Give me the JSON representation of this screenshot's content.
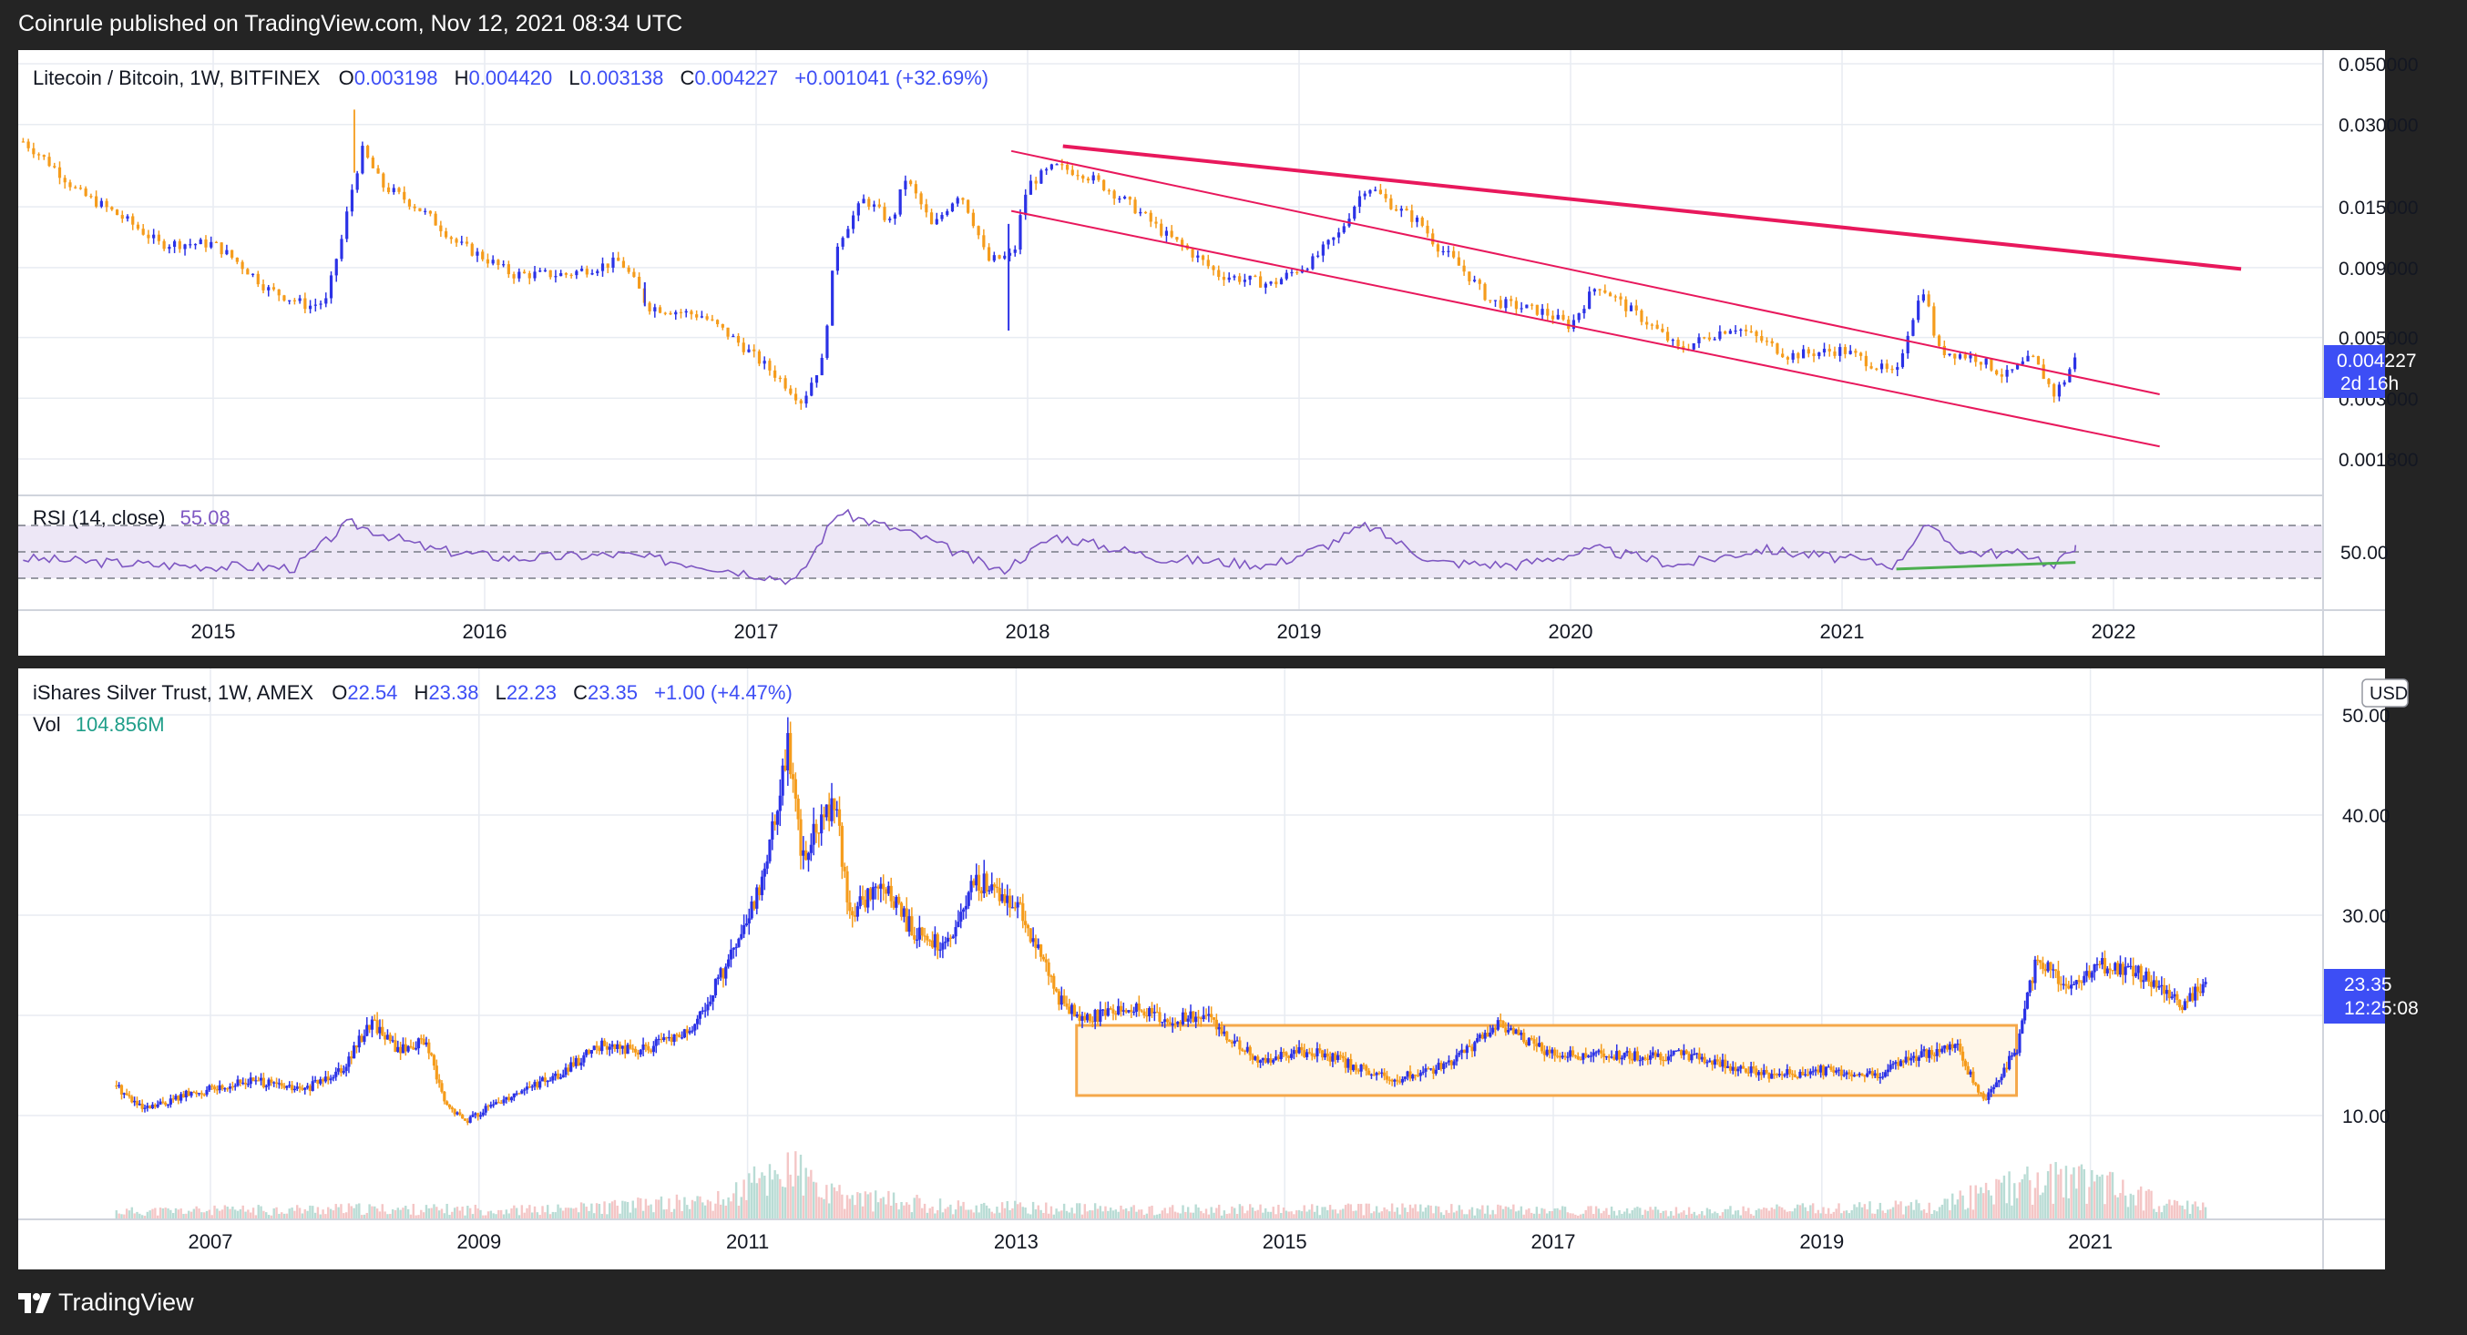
{
  "header": {
    "published_by": "Coinrule published on TradingView.com, Nov 12, 2021 08:34 UTC"
  },
  "footer": {
    "brand": "TradingView",
    "logo_icon": "tradingview-logo-icon"
  },
  "colors": {
    "up": "#2b32e6",
    "down": "#f59c1c",
    "trendline": "#e8185c",
    "channel": "#e8185c",
    "rsi": "#7e57c2",
    "rsi_band": "#ede7f6",
    "box": "#f5a84a",
    "box_fill": "#fff6e8",
    "support": "#4caf50",
    "grid": "#e8ecf2",
    "price_label": "#3d4ef5",
    "rsi_value": "#7e57c2",
    "vol_value": "#1f9e89"
  },
  "top_chart": {
    "legend": {
      "symbol": "Litecoin / Bitcoin, 1W, BITFINEX",
      "o_label": "O",
      "o": "0.003198",
      "h_label": "H",
      "h": "0.004420",
      "l_label": "L",
      "l": "0.003138",
      "c_label": "C",
      "c": "0.004227",
      "change": "+0.001041 (+32.69%)"
    },
    "rsi_legend": {
      "name": "RSI (14, close)",
      "value": "55.08"
    },
    "price_label": {
      "value": "0.004227",
      "countdown": "2d 16h"
    }
  },
  "bottom_chart": {
    "legend": {
      "symbol": "iShares Silver Trust, 1W, AMEX",
      "o_label": "O",
      "o": "22.54",
      "h_label": "H",
      "h": "23.38",
      "l_label": "L",
      "l": "22.23",
      "c_label": "C",
      "c": "23.35",
      "change": "+1.00 (+4.47%)"
    },
    "vol_legend": {
      "name": "Vol",
      "value": "104.856M"
    },
    "currency": "USD",
    "price_label": {
      "value": "23.35",
      "countdown": "12:25:08"
    }
  },
  "chart_data": [
    {
      "type": "candlestick",
      "title": "Litecoin / Bitcoin, 1W, BITFINEX",
      "y_scale": "log",
      "y_ticks": [
        "0.050000",
        "0.030000",
        "0.015000",
        "0.009000",
        "0.005000",
        "0.003000",
        "0.001800"
      ],
      "x_ticks": [
        "2015",
        "2016",
        "2017",
        "2018",
        "2019",
        "2020",
        "2021",
        "2022"
      ],
      "grid": true,
      "price_path": [
        {
          "x": 2014.3,
          "y": 0.026
        },
        {
          "x": 2014.5,
          "y": 0.017
        },
        {
          "x": 2014.8,
          "y": 0.011
        },
        {
          "x": 2015.0,
          "y": 0.011
        },
        {
          "x": 2015.2,
          "y": 0.0075
        },
        {
          "x": 2015.35,
          "y": 0.0065
        },
        {
          "x": 2015.42,
          "y": 0.0068
        },
        {
          "x": 2015.48,
          "y": 0.012
        },
        {
          "x": 2015.55,
          "y": 0.024
        },
        {
          "x": 2015.62,
          "y": 0.018
        },
        {
          "x": 2015.75,
          "y": 0.015
        },
        {
          "x": 2015.9,
          "y": 0.011
        },
        {
          "x": 2016.1,
          "y": 0.0085
        },
        {
          "x": 2016.3,
          "y": 0.0085
        },
        {
          "x": 2016.5,
          "y": 0.0095
        },
        {
          "x": 2016.6,
          "y": 0.0065
        },
        {
          "x": 2016.8,
          "y": 0.006
        },
        {
          "x": 2017.0,
          "y": 0.0042
        },
        {
          "x": 2017.17,
          "y": 0.0029
        },
        {
          "x": 2017.25,
          "y": 0.0042
        },
        {
          "x": 2017.3,
          "y": 0.011
        },
        {
          "x": 2017.4,
          "y": 0.016
        },
        {
          "x": 2017.5,
          "y": 0.013
        },
        {
          "x": 2017.55,
          "y": 0.019
        },
        {
          "x": 2017.65,
          "y": 0.0125
        },
        {
          "x": 2017.75,
          "y": 0.017
        },
        {
          "x": 2017.85,
          "y": 0.0095
        },
        {
          "x": 2017.95,
          "y": 0.01
        },
        {
          "x": 2018.0,
          "y": 0.018
        },
        {
          "x": 2018.1,
          "y": 0.021
        },
        {
          "x": 2018.2,
          "y": 0.02
        },
        {
          "x": 2018.35,
          "y": 0.016
        },
        {
          "x": 2018.5,
          "y": 0.012
        },
        {
          "x": 2018.7,
          "y": 0.0085
        },
        {
          "x": 2018.9,
          "y": 0.0078
        },
        {
          "x": 2019.05,
          "y": 0.0095
        },
        {
          "x": 2019.15,
          "y": 0.012
        },
        {
          "x": 2019.25,
          "y": 0.018
        },
        {
          "x": 2019.35,
          "y": 0.015
        },
        {
          "x": 2019.45,
          "y": 0.013
        },
        {
          "x": 2019.5,
          "y": 0.011
        },
        {
          "x": 2019.7,
          "y": 0.0068
        },
        {
          "x": 2019.9,
          "y": 0.0062
        },
        {
          "x": 2020.0,
          "y": 0.0055
        },
        {
          "x": 2020.1,
          "y": 0.0078
        },
        {
          "x": 2020.2,
          "y": 0.0065
        },
        {
          "x": 2020.4,
          "y": 0.0045
        },
        {
          "x": 2020.6,
          "y": 0.0055
        },
        {
          "x": 2020.8,
          "y": 0.0043
        },
        {
          "x": 2021.0,
          "y": 0.0045
        },
        {
          "x": 2021.2,
          "y": 0.0036
        },
        {
          "x": 2021.3,
          "y": 0.0075
        },
        {
          "x": 2021.35,
          "y": 0.0045
        },
        {
          "x": 2021.5,
          "y": 0.0042
        },
        {
          "x": 2021.6,
          "y": 0.0036
        },
        {
          "x": 2021.7,
          "y": 0.0042
        },
        {
          "x": 2021.78,
          "y": 0.0031
        },
        {
          "x": 2021.82,
          "y": 0.0035
        },
        {
          "x": 2021.86,
          "y": 0.004227
        }
      ],
      "lines": [
        {
          "name": "",
          "kind": "trendline",
          "points": [
            {
              "x": 2018.13,
              "y": 0.025
            },
            {
              "x": 2022.47,
              "y": 0.0089
            }
          ]
        },
        {
          "name": "",
          "kind": "channel-upper",
          "points": [
            {
              "x": 2017.94,
              "y": 0.024
            },
            {
              "x": 2022.17,
              "y": 0.0031
            }
          ]
        },
        {
          "name": "",
          "kind": "channel-lower",
          "points": [
            {
              "x": 2017.94,
              "y": 0.0145
            },
            {
              "x": 2022.17,
              "y": 0.002
            }
          ]
        }
      ],
      "rsi": {
        "period": 14,
        "last": 55.08,
        "bands": [
          30,
          50,
          70
        ],
        "path": [
          {
            "x": 2014.3,
            "y": 45
          },
          {
            "x": 2014.8,
            "y": 40
          },
          {
            "x": 2015.3,
            "y": 38
          },
          {
            "x": 2015.5,
            "y": 72
          },
          {
            "x": 2015.8,
            "y": 52
          },
          {
            "x": 2016.1,
            "y": 45
          },
          {
            "x": 2016.5,
            "y": 48
          },
          {
            "x": 2016.8,
            "y": 40
          },
          {
            "x": 2017.15,
            "y": 28
          },
          {
            "x": 2017.3,
            "y": 80
          },
          {
            "x": 2017.6,
            "y": 62
          },
          {
            "x": 2017.9,
            "y": 35
          },
          {
            "x": 2018.1,
            "y": 62
          },
          {
            "x": 2018.5,
            "y": 45
          },
          {
            "x": 2018.9,
            "y": 40
          },
          {
            "x": 2019.1,
            "y": 55
          },
          {
            "x": 2019.25,
            "y": 70
          },
          {
            "x": 2019.5,
            "y": 42
          },
          {
            "x": 2019.8,
            "y": 40
          },
          {
            "x": 2020.1,
            "y": 52
          },
          {
            "x": 2020.4,
            "y": 40
          },
          {
            "x": 2020.7,
            "y": 52
          },
          {
            "x": 2021.0,
            "y": 45
          },
          {
            "x": 2021.2,
            "y": 40
          },
          {
            "x": 2021.3,
            "y": 70
          },
          {
            "x": 2021.45,
            "y": 50
          },
          {
            "x": 2021.7,
            "y": 48
          },
          {
            "x": 2021.78,
            "y": 38
          },
          {
            "x": 2021.86,
            "y": 55.08
          }
        ],
        "support_line": [
          {
            "x": 2021.2,
            "y": 37
          },
          {
            "x": 2021.86,
            "y": 42
          }
        ]
      }
    },
    {
      "type": "candlestick",
      "title": "iShares Silver Trust, 1W, AMEX",
      "y_scale": "linear",
      "y_ticks": [
        "50.00",
        "40.00",
        "30.00",
        "10.00"
      ],
      "x_ticks": [
        "2007",
        "2009",
        "2011",
        "2013",
        "2015",
        "2017",
        "2019",
        "2021"
      ],
      "grid": true,
      "price_path": [
        {
          "x": 2006.3,
          "y": 13
        },
        {
          "x": 2006.5,
          "y": 10.5
        },
        {
          "x": 2006.8,
          "y": 12
        },
        {
          "x": 2007.3,
          "y": 13.5
        },
        {
          "x": 2007.7,
          "y": 12.5
        },
        {
          "x": 2008.0,
          "y": 15
        },
        {
          "x": 2008.2,
          "y": 19.5
        },
        {
          "x": 2008.4,
          "y": 16.5
        },
        {
          "x": 2008.6,
          "y": 17.5
        },
        {
          "x": 2008.75,
          "y": 11
        },
        {
          "x": 2008.9,
          "y": 9.5
        },
        {
          "x": 2009.3,
          "y": 12.5
        },
        {
          "x": 2009.6,
          "y": 14
        },
        {
          "x": 2009.9,
          "y": 17
        },
        {
          "x": 2010.2,
          "y": 16.5
        },
        {
          "x": 2010.6,
          "y": 18.5
        },
        {
          "x": 2010.8,
          "y": 24
        },
        {
          "x": 2011.0,
          "y": 29
        },
        {
          "x": 2011.15,
          "y": 36
        },
        {
          "x": 2011.3,
          "y": 47.5
        },
        {
          "x": 2011.4,
          "y": 36
        },
        {
          "x": 2011.55,
          "y": 39
        },
        {
          "x": 2011.65,
          "y": 42
        },
        {
          "x": 2011.75,
          "y": 30
        },
        {
          "x": 2012.0,
          "y": 33
        },
        {
          "x": 2012.25,
          "y": 28
        },
        {
          "x": 2012.5,
          "y": 27
        },
        {
          "x": 2012.7,
          "y": 33.5
        },
        {
          "x": 2013.0,
          "y": 31.5
        },
        {
          "x": 2013.3,
          "y": 22
        },
        {
          "x": 2013.5,
          "y": 19.5
        },
        {
          "x": 2013.8,
          "y": 21
        },
        {
          "x": 2014.1,
          "y": 19.5
        },
        {
          "x": 2014.4,
          "y": 20
        },
        {
          "x": 2014.8,
          "y": 15.5
        },
        {
          "x": 2015.2,
          "y": 16.5
        },
        {
          "x": 2015.8,
          "y": 13.5
        },
        {
          "x": 2016.2,
          "y": 15
        },
        {
          "x": 2016.6,
          "y": 19
        },
        {
          "x": 2017.0,
          "y": 16
        },
        {
          "x": 2017.5,
          "y": 16
        },
        {
          "x": 2018.0,
          "y": 16
        },
        {
          "x": 2018.6,
          "y": 14
        },
        {
          "x": 2019.0,
          "y": 14.5
        },
        {
          "x": 2019.4,
          "y": 14
        },
        {
          "x": 2019.7,
          "y": 16
        },
        {
          "x": 2020.0,
          "y": 17
        },
        {
          "x": 2020.2,
          "y": 11.5
        },
        {
          "x": 2020.45,
          "y": 16.5
        },
        {
          "x": 2020.6,
          "y": 26
        },
        {
          "x": 2020.8,
          "y": 23
        },
        {
          "x": 2021.1,
          "y": 25
        },
        {
          "x": 2021.4,
          "y": 24
        },
        {
          "x": 2021.7,
          "y": 21
        },
        {
          "x": 2021.86,
          "y": 23.35
        }
      ],
      "box": {
        "x_start": 2013.45,
        "x_end": 2020.45,
        "y_top": 19.0,
        "y_bottom": 12.0
      },
      "volume": {
        "last": "104.856M",
        "path": [
          {
            "x": 2006.3,
            "y": 0.15
          },
          {
            "x": 2008.0,
            "y": 0.2
          },
          {
            "x": 2009.5,
            "y": 0.18
          },
          {
            "x": 2010.8,
            "y": 0.35
          },
          {
            "x": 2011.3,
            "y": 1.0
          },
          {
            "x": 2011.6,
            "y": 0.45
          },
          {
            "x": 2012.5,
            "y": 0.25
          },
          {
            "x": 2014.0,
            "y": 0.18
          },
          {
            "x": 2016.0,
            "y": 0.2
          },
          {
            "x": 2018.0,
            "y": 0.15
          },
          {
            "x": 2019.8,
            "y": 0.25
          },
          {
            "x": 2020.3,
            "y": 0.55
          },
          {
            "x": 2020.6,
            "y": 0.7
          },
          {
            "x": 2021.1,
            "y": 0.75
          },
          {
            "x": 2021.5,
            "y": 0.3
          },
          {
            "x": 2021.86,
            "y": 0.2
          }
        ]
      }
    }
  ]
}
